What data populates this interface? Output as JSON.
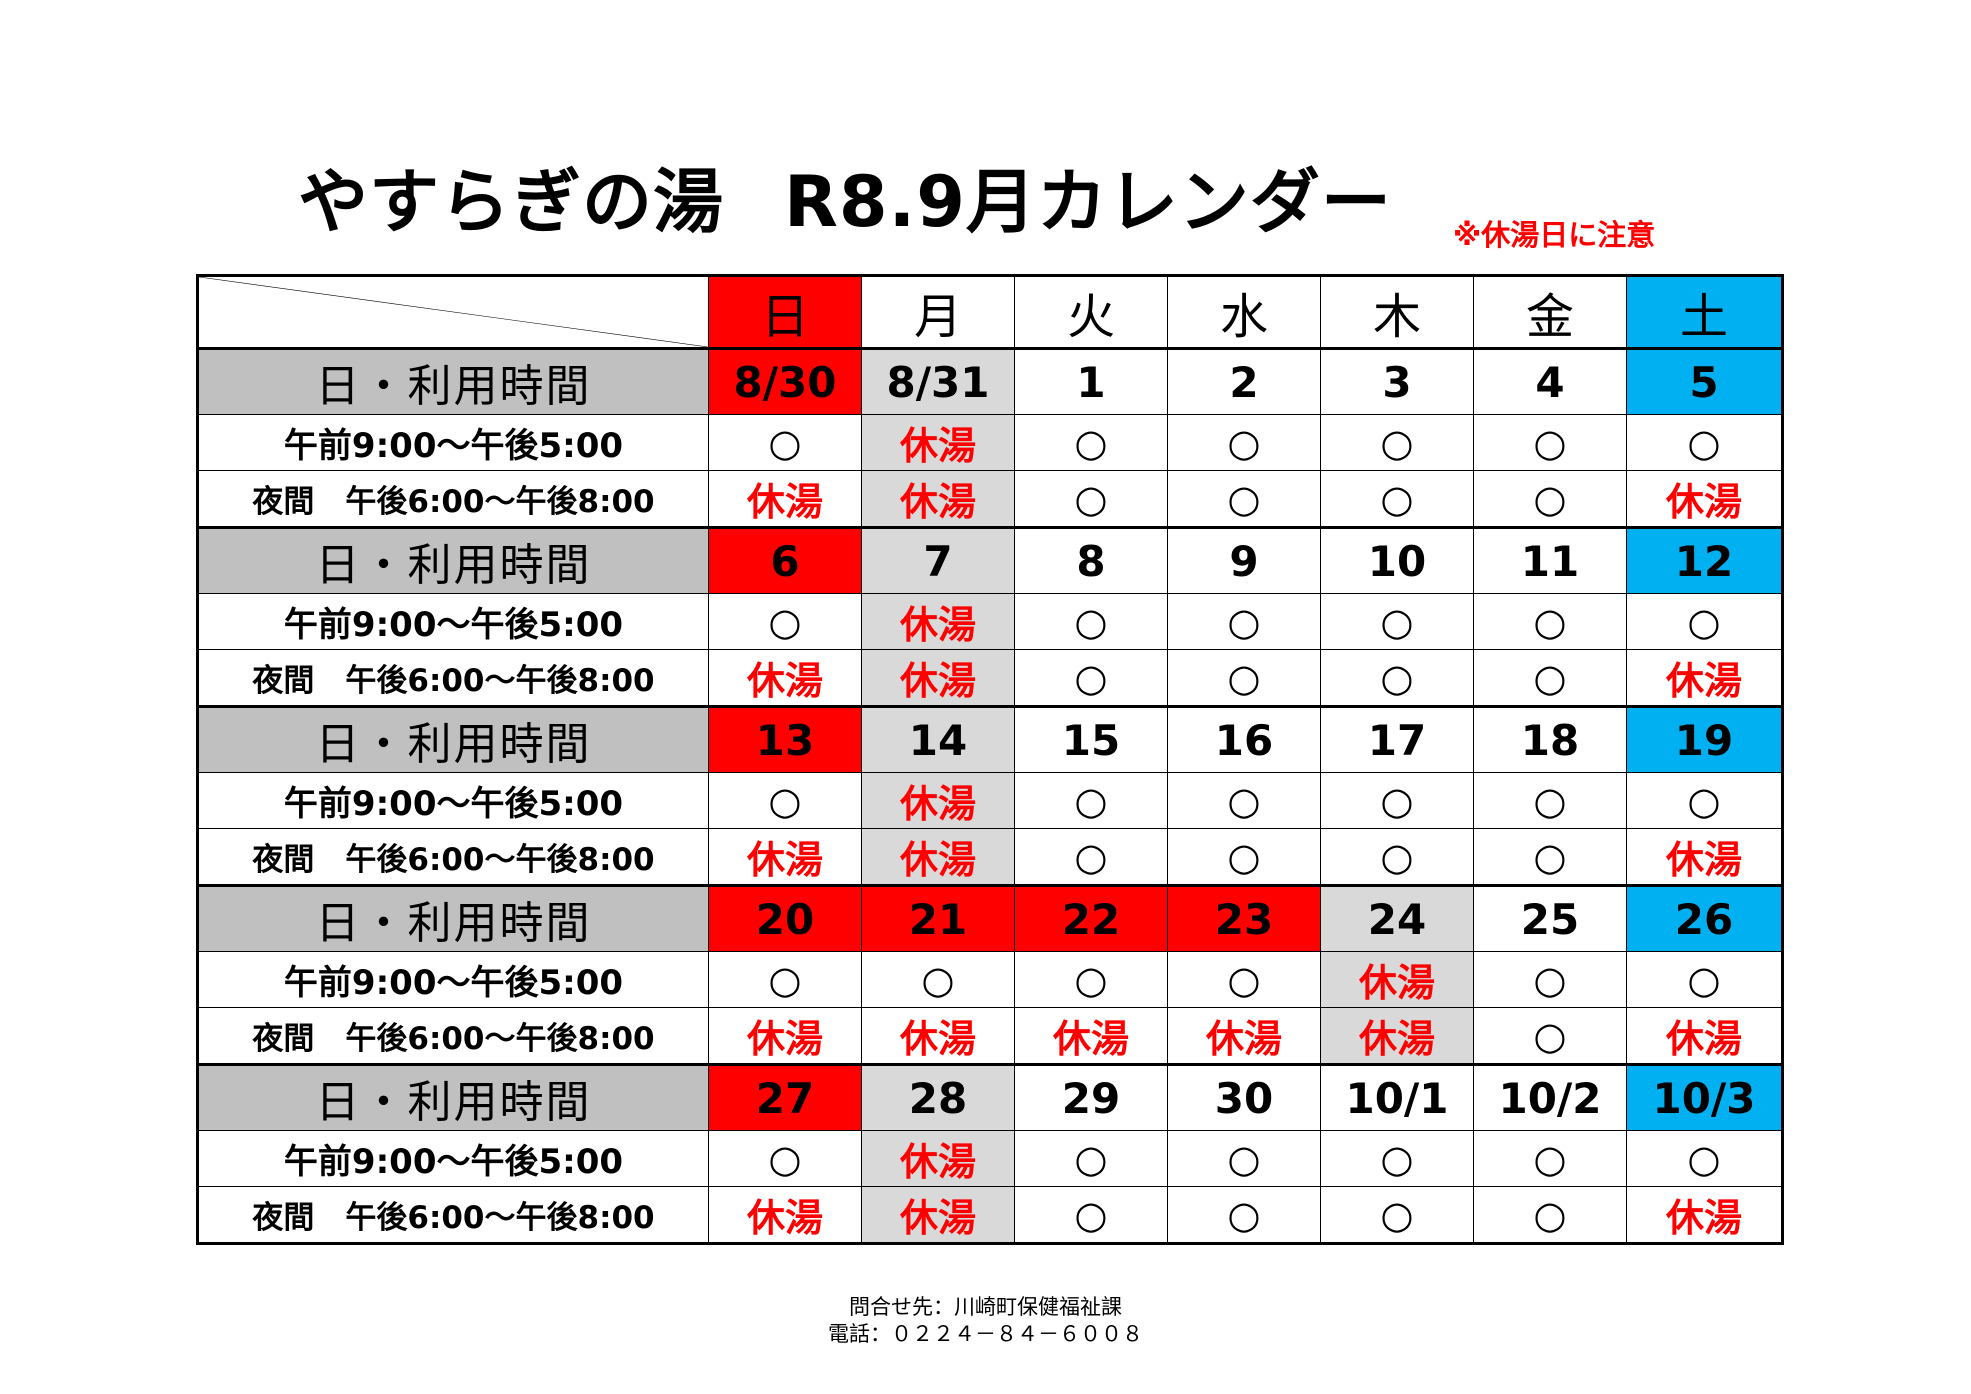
{
  "header": {
    "title": "やすらぎの湯",
    "subtitle": "R8.9月カレンダー",
    "note": "※休湯日に注意"
  },
  "calendar": {
    "weekdays": [
      "日",
      "月",
      "火",
      "水",
      "木",
      "金",
      "土"
    ],
    "row_labels": {
      "date": "日・利用時間",
      "day": "午前9:00～午後5:00",
      "night": "夜間　午後6:00～午後8:00"
    },
    "symbols": {
      "open": "○",
      "closed": "休湯"
    },
    "weeks": [
      {
        "dates": [
          "8/30",
          "8/31",
          "1",
          "2",
          "3",
          "4",
          "5"
        ],
        "date_colors": [
          "red",
          "gray",
          "",
          "",
          "",
          "",
          "blue"
        ],
        "day": [
          "○",
          "休湯",
          "○",
          "○",
          "○",
          "○",
          "○"
        ],
        "night": [
          "休湯",
          "休湯",
          "○",
          "○",
          "○",
          "○",
          "休湯"
        ],
        "gray_slots": [
          1
        ]
      },
      {
        "dates": [
          "6",
          "7",
          "8",
          "9",
          "10",
          "11",
          "12"
        ],
        "date_colors": [
          "red",
          "gray",
          "",
          "",
          "",
          "",
          "blue"
        ],
        "day": [
          "○",
          "休湯",
          "○",
          "○",
          "○",
          "○",
          "○"
        ],
        "night": [
          "休湯",
          "休湯",
          "○",
          "○",
          "○",
          "○",
          "休湯"
        ],
        "gray_slots": [
          1
        ]
      },
      {
        "dates": [
          "13",
          "14",
          "15",
          "16",
          "17",
          "18",
          "19"
        ],
        "date_colors": [
          "red",
          "gray",
          "",
          "",
          "",
          "",
          "blue"
        ],
        "day": [
          "○",
          "休湯",
          "○",
          "○",
          "○",
          "○",
          "○"
        ],
        "night": [
          "休湯",
          "休湯",
          "○",
          "○",
          "○",
          "○",
          "休湯"
        ],
        "gray_slots": [
          1
        ]
      },
      {
        "dates": [
          "20",
          "21",
          "22",
          "23",
          "24",
          "25",
          "26"
        ],
        "date_colors": [
          "red",
          "red",
          "red",
          "red",
          "gray",
          "",
          "blue"
        ],
        "day": [
          "○",
          "○",
          "○",
          "○",
          "休湯",
          "○",
          "○"
        ],
        "night": [
          "休湯",
          "休湯",
          "休湯",
          "休湯",
          "休湯",
          "○",
          "休湯"
        ],
        "gray_slots": [
          4
        ]
      },
      {
        "dates": [
          "27",
          "28",
          "29",
          "30",
          "10/1",
          "10/2",
          "10/3"
        ],
        "date_colors": [
          "red",
          "gray",
          "",
          "",
          "",
          "",
          "blue"
        ],
        "day": [
          "○",
          "休湯",
          "○",
          "○",
          "○",
          "○",
          "○"
        ],
        "night": [
          "休湯",
          "休湯",
          "○",
          "○",
          "○",
          "○",
          "休湯"
        ],
        "gray_slots": [
          1
        ]
      }
    ]
  },
  "colors": {
    "sunday_holiday": "#ff0000",
    "saturday": "#00b0f0",
    "closed_day": "#d9d9d9",
    "label_bg": "#c0c0c0",
    "closed_text": "#ff0000"
  },
  "contact": {
    "line1": "問合せ先：川崎町保健福祉課",
    "line2": "電話：０２２４－８４－６００８"
  }
}
